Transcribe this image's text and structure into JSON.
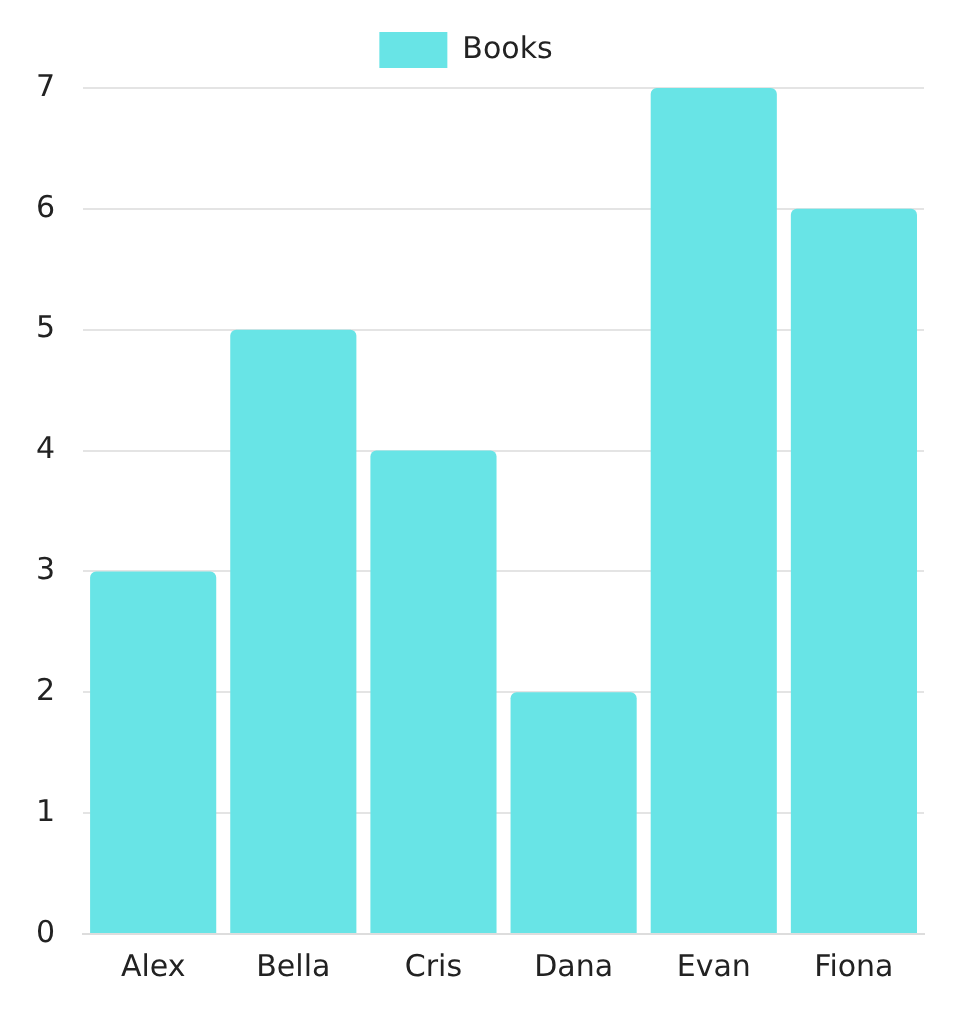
{
  "chart_data": {
    "type": "bar",
    "categories": [
      "Alex",
      "Bella",
      "Cris",
      "Dana",
      "Evan",
      "Fiona"
    ],
    "series": [
      {
        "name": "Books",
        "color": "#68e4e6",
        "values": [
          3,
          5,
          4,
          2,
          7,
          6
        ]
      }
    ],
    "ylim": [
      0,
      7
    ],
    "yticks": [
      0,
      1,
      2,
      3,
      4,
      5,
      6,
      7
    ],
    "grid": "y",
    "legend": "top"
  }
}
